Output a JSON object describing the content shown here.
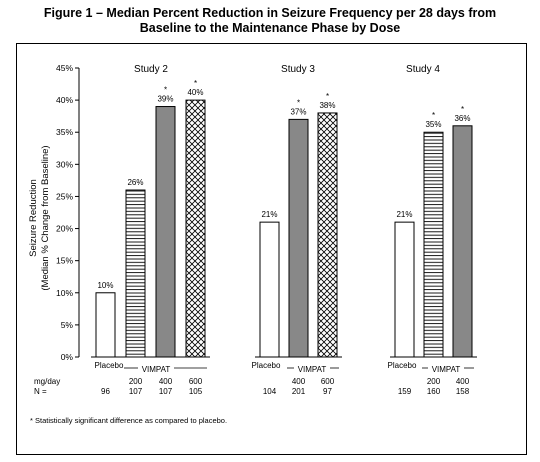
{
  "figure": {
    "title_line1": "Figure 1 – Median Percent Reduction in Seizure Frequency per 28 days from",
    "title_line2": "Baseline to the Maintenance Phase by Dose",
    "footnote": "* Statistically significant difference as compared to placebo."
  },
  "chart_data": {
    "type": "bar",
    "ylabel_line1": "Seizure Reduction",
    "ylabel_line2": "(Median % Change from Baseline)",
    "ylim": [
      0,
      45
    ],
    "yticks": [
      "0%",
      "5%",
      "10%",
      "15%",
      "20%",
      "25%",
      "30%",
      "35%",
      "40%",
      "45%"
    ],
    "row_labels": {
      "dose": "mg/day",
      "n": "N ="
    },
    "groups": [
      {
        "name": "Study 2",
        "placebo_label": "Placebo",
        "drug_label": "VIMPAT",
        "bars": [
          {
            "dose": "",
            "n": "96",
            "value": 10,
            "label": "10%",
            "significant": false,
            "pattern": "open"
          },
          {
            "dose": "200",
            "n": "107",
            "value": 26,
            "label": "26%",
            "significant": false,
            "pattern": "hlines"
          },
          {
            "dose": "400",
            "n": "107",
            "value": 39,
            "label": "39%",
            "significant": true,
            "pattern": "solid"
          },
          {
            "dose": "600",
            "n": "105",
            "value": 40,
            "label": "40%",
            "significant": true,
            "pattern": "cross"
          }
        ]
      },
      {
        "name": "Study 3",
        "placebo_label": "Placebo",
        "drug_label": "VIMPAT",
        "bars": [
          {
            "dose": "",
            "n": "104",
            "value": 21,
            "label": "21%",
            "significant": false,
            "pattern": "open"
          },
          {
            "dose": "400",
            "n": "201",
            "value": 37,
            "label": "37%",
            "significant": true,
            "pattern": "solid"
          },
          {
            "dose": "600",
            "n": "97",
            "value": 38,
            "label": "38%",
            "significant": true,
            "pattern": "cross"
          }
        ]
      },
      {
        "name": "Study 4",
        "placebo_label": "Placebo",
        "drug_label": "VIMPAT",
        "bars": [
          {
            "dose": "",
            "n": "159",
            "value": 21,
            "label": "21%",
            "significant": false,
            "pattern": "open"
          },
          {
            "dose": "200",
            "n": "160",
            "value": 35,
            "label": "35%",
            "significant": true,
            "pattern": "hlines"
          },
          {
            "dose": "400",
            "n": "158",
            "value": 36,
            "label": "36%",
            "significant": true,
            "pattern": "solid"
          }
        ]
      }
    ],
    "significance_marker": "*"
  },
  "colors": {
    "solid_bar": "#888888",
    "open_bar": "#ffffff",
    "stroke": "#000000"
  }
}
